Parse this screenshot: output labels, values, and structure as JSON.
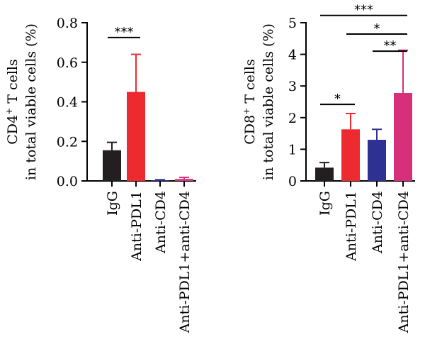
{
  "chart_data": [
    {
      "type": "bar",
      "ylabel_line1_base": "CD4",
      "ylabel_line1_sup": "+",
      "ylabel_line1_rest": " T cells",
      "ylabel_line2": "in total viable cells (%)",
      "ylim": [
        0,
        0.8
      ],
      "yticks": [
        "0.0",
        "0.2",
        "0.4",
        "0.6",
        "0.8"
      ],
      "ytick_values": [
        0,
        0.2,
        0.4,
        0.6,
        0.8
      ],
      "categories": [
        "IgG",
        "Anti-PDL1",
        "Anti-CD4",
        "Anti-PDL1+anti-CD4"
      ],
      "values": [
        0.155,
        0.45,
        0.002,
        0.01
      ],
      "errors": [
        0.04,
        0.19,
        0.004,
        0.008
      ],
      "colors": [
        "#231f20",
        "#ed2a2f",
        "#2e3192",
        "#d6307a"
      ],
      "significance": [
        {
          "from": 0,
          "to": 1,
          "label": "***",
          "level": 0.725
        }
      ]
    },
    {
      "type": "bar",
      "ylabel_line1_base": "CD8",
      "ylabel_line1_sup": "+",
      "ylabel_line1_rest": " T cells",
      "ylabel_line2": "in total viable cells (%)",
      "ylim": [
        0,
        5
      ],
      "yticks": [
        "0",
        "1",
        "2",
        "3",
        "4",
        "5"
      ],
      "ytick_values": [
        0,
        1,
        2,
        3,
        4,
        5
      ],
      "categories": [
        "IgG",
        "Anti-PDL1",
        "Anti-CD4",
        "Anti-PDL1+anti-CD4"
      ],
      "values": [
        0.42,
        1.63,
        1.3,
        2.78
      ],
      "errors": [
        0.16,
        0.5,
        0.33,
        1.35
      ],
      "colors": [
        "#231f20",
        "#ed2a2f",
        "#2e3192",
        "#d6307a"
      ],
      "significance": [
        {
          "from": 0,
          "to": 3,
          "label": "***",
          "level": 5.23
        },
        {
          "from": 1,
          "to": 3,
          "label": "*",
          "level": 4.64
        },
        {
          "from": 2,
          "to": 3,
          "label": "**",
          "level": 4.1
        },
        {
          "from": 0,
          "to": 1,
          "label": "*",
          "level": 2.42
        }
      ]
    }
  ]
}
